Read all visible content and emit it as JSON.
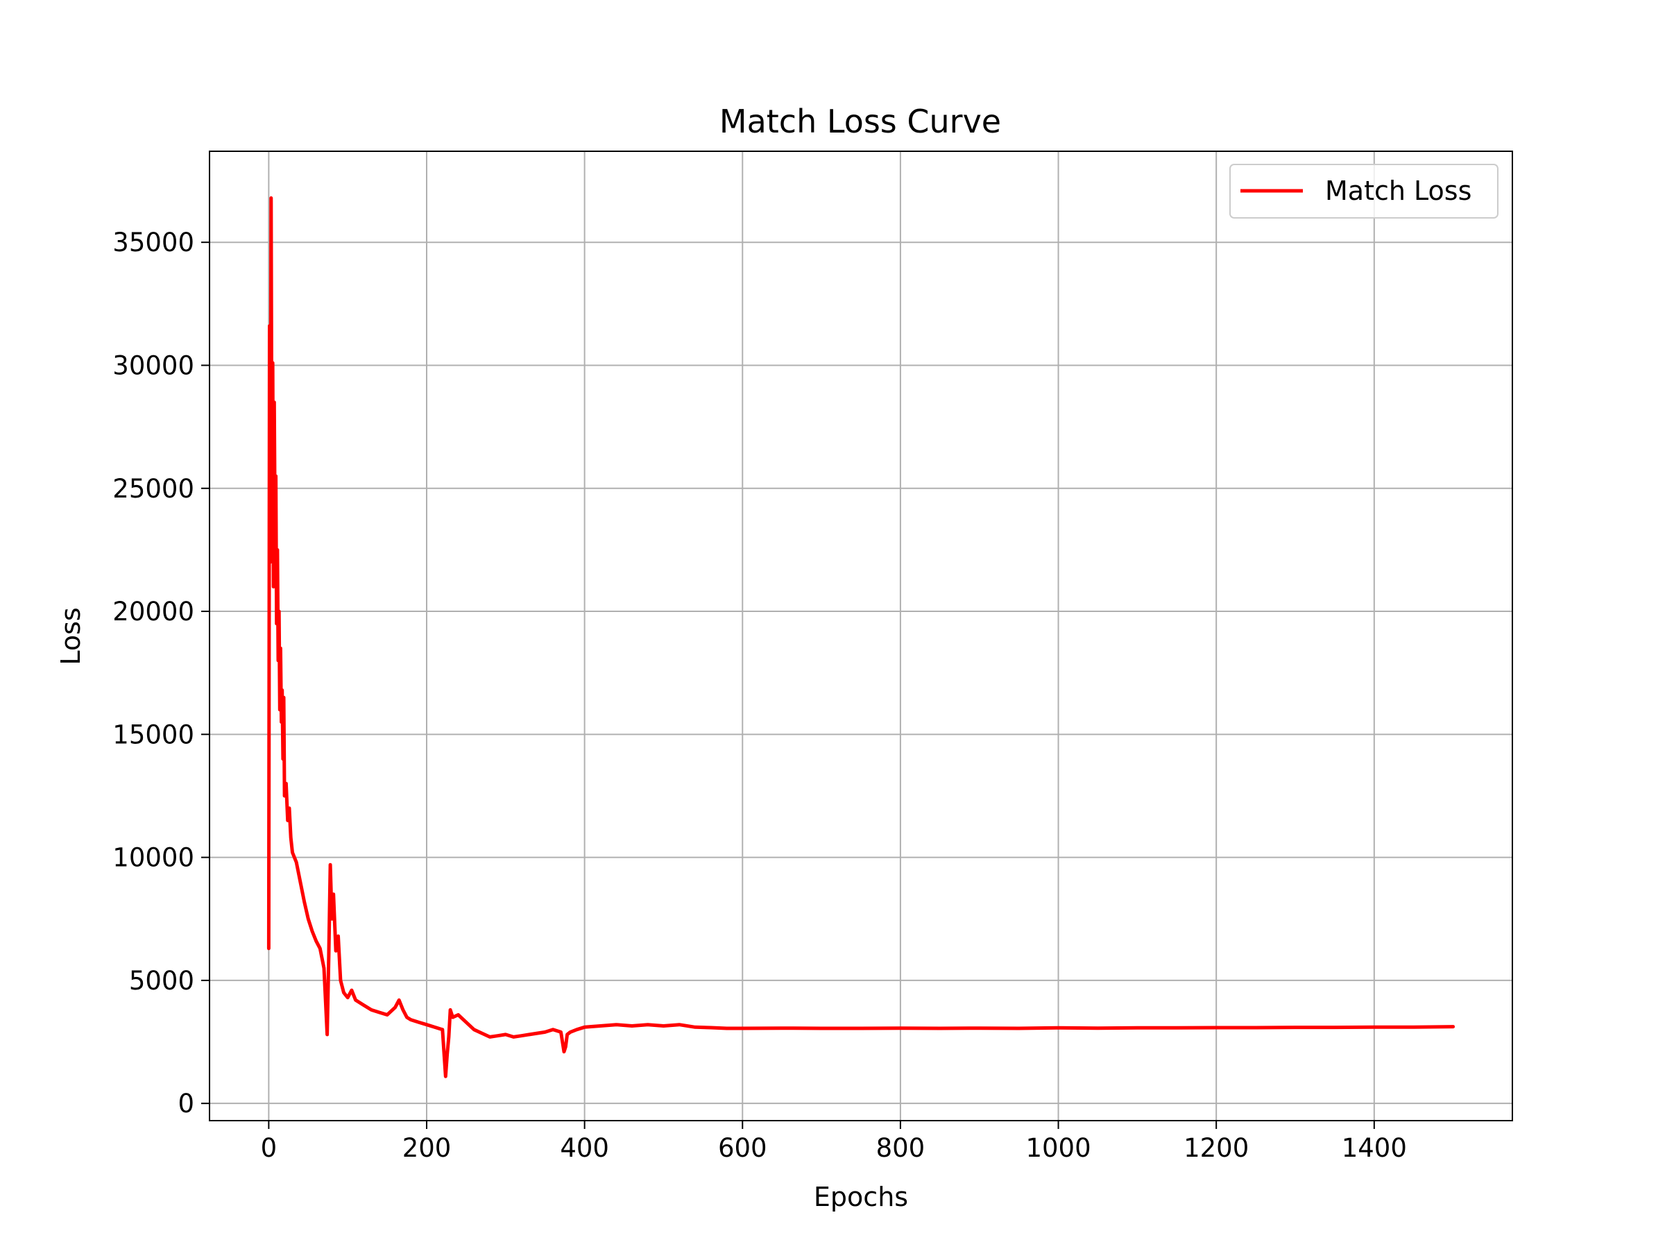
{
  "chart_data": {
    "type": "line",
    "title": "Match Loss Curve",
    "xlabel": "Epochs",
    "ylabel": "Loss",
    "xlim": [
      -75,
      1575
    ],
    "ylim": [
      -700,
      38700
    ],
    "xticks": [
      0,
      200,
      400,
      600,
      800,
      1000,
      1200,
      1400
    ],
    "yticks": [
      0,
      5000,
      10000,
      15000,
      20000,
      25000,
      30000,
      35000
    ],
    "grid": true,
    "legend_position": "top-right",
    "series": [
      {
        "name": "Match Loss",
        "color": "#ff0000",
        "x": [
          0,
          1,
          2,
          3,
          4,
          5,
          6,
          7,
          8,
          9,
          10,
          11,
          12,
          13,
          14,
          15,
          16,
          17,
          18,
          19,
          20,
          22,
          24,
          26,
          28,
          30,
          35,
          40,
          45,
          50,
          55,
          60,
          65,
          70,
          74,
          76,
          78,
          80,
          82,
          85,
          88,
          91,
          95,
          100,
          105,
          110,
          120,
          130,
          140,
          150,
          160,
          165,
          170,
          175,
          180,
          190,
          200,
          210,
          220,
          224,
          226,
          228,
          230,
          233,
          240,
          250,
          260,
          270,
          280,
          290,
          300,
          310,
          320,
          330,
          340,
          350,
          360,
          370,
          374,
          376,
          378,
          382,
          390,
          400,
          420,
          440,
          460,
          480,
          500,
          520,
          540,
          560,
          580,
          600,
          650,
          700,
          750,
          800,
          850,
          900,
          950,
          1000,
          1050,
          1100,
          1150,
          1200,
          1250,
          1300,
          1350,
          1400,
          1450,
          1500
        ],
        "y": [
          6300,
          31600,
          22000,
          36800,
          25000,
          30100,
          21000,
          28500,
          23000,
          25500,
          19500,
          22500,
          18000,
          20000,
          16000,
          18500,
          15500,
          16800,
          14000,
          16500,
          12500,
          13000,
          11500,
          12000,
          10800,
          10200,
          9800,
          9000,
          8200,
          7500,
          7000,
          6600,
          6300,
          5500,
          2800,
          6000,
          9700,
          7500,
          8500,
          6200,
          6800,
          5000,
          4500,
          4300,
          4600,
          4200,
          4000,
          3800,
          3700,
          3600,
          3900,
          4200,
          3800,
          3500,
          3400,
          3300,
          3200,
          3100,
          3000,
          1100,
          2000,
          2700,
          3800,
          3500,
          3600,
          3300,
          3000,
          2850,
          2700,
          2750,
          2800,
          2700,
          2750,
          2800,
          2850,
          2900,
          3000,
          2900,
          2100,
          2300,
          2800,
          2900,
          3000,
          3100,
          3150,
          3200,
          3150,
          3200,
          3150,
          3200,
          3100,
          3080,
          3050,
          3050,
          3060,
          3050,
          3050,
          3060,
          3050,
          3060,
          3050,
          3070,
          3060,
          3070,
          3070,
          3080,
          3080,
          3090,
          3090,
          3100,
          3100,
          3120
        ]
      }
    ]
  }
}
